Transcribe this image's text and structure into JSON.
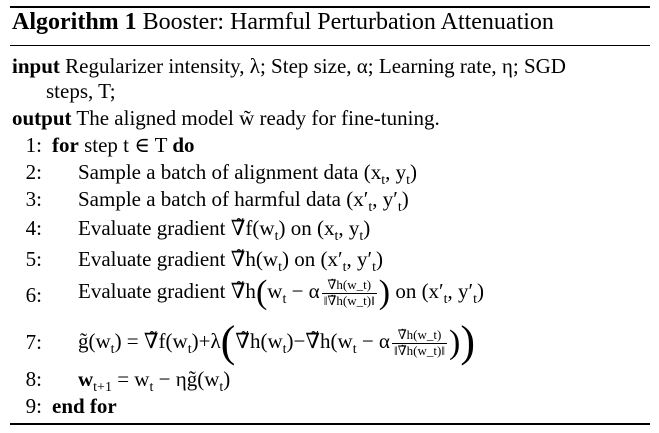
{
  "algorithm": {
    "label": "Algorithm 1",
    "title": "Booster: Harmful Perturbation Attenuation"
  },
  "io": {
    "input_kw": "input",
    "input_text_1": "Regularizer intensity, λ; Step size, α; Learning rate, η; SGD",
    "input_text_2": "steps, T;",
    "output_kw": "output",
    "output_text": "The aligned model w̃ ready for fine-tuning."
  },
  "steps": [
    {
      "num": "1:",
      "kw": "for",
      "text": "step t ∈ T",
      "kw2": "do"
    },
    {
      "num": "2:",
      "text": "Sample a batch of alignment data (x",
      "sub": "t",
      "tail": ", y",
      "sub2": "t",
      "end": ")"
    },
    {
      "num": "3:",
      "text": "Sample a batch of harmful data (x′",
      "sub": "t",
      "tail": ", y′",
      "sub2": "t",
      "end": ")"
    },
    {
      "num": "4:",
      "text": "Evaluate gradient ∇̃f(w",
      "sub": "t",
      "tail": ") on (x",
      "sub2": "t",
      "end": ", y",
      "sub3": "t",
      "end2": ")"
    },
    {
      "num": "5:",
      "text": "Evaluate gradient ∇̃h(w",
      "sub": "t",
      "tail": ") on (x′",
      "sub2": "t",
      "end": ", y′",
      "sub3": "t",
      "end2": ")"
    },
    {
      "num": "6:",
      "text": "Evaluate gradient ∇̃h",
      "mid": "w",
      "sub": "t",
      "minus": " − α",
      "frac_num": "∇̃h(w_t)",
      "frac_den": "‖∇̃h(w_t)‖",
      "tail": " on (x′",
      "sub2": "t",
      "end": ", y′",
      "sub3": "t",
      "end2": ")"
    },
    {
      "num": "7:",
      "lhs": "g̃(w",
      "sub": "t",
      "eq": ") = ∇̃f(w",
      "sub2": "t",
      "plus": ")+λ",
      "a": "∇̃h(w",
      "sub3": "t",
      "b": ")−∇̃h(w",
      "sub4": "t",
      "c": " − α",
      "frac_num": "∇̃h(w_t)",
      "frac_den": "‖∇̃h(w_t)‖"
    },
    {
      "num": "8:",
      "lhs": "w",
      "sub": "t+1",
      "eq": " = w",
      "sub2": "t",
      "rhs": " − ηg̃(w",
      "sub3": "t",
      "end": ")"
    },
    {
      "num": "9:",
      "kw": "end for"
    }
  ]
}
